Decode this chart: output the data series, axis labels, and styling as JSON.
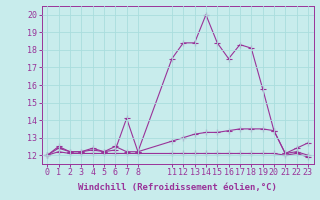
{
  "background_color": "#c8ecec",
  "grid_color": "#aadddd",
  "line_color": "#993399",
  "hours": [
    0,
    1,
    2,
    3,
    4,
    5,
    6,
    7,
    8,
    11,
    12,
    13,
    14,
    15,
    16,
    17,
    18,
    19,
    20,
    21,
    22,
    23
  ],
  "temp_line": [
    12.0,
    12.5,
    12.2,
    12.2,
    12.4,
    12.2,
    12.3,
    14.1,
    12.2,
    17.5,
    18.4,
    18.4,
    20.0,
    18.4,
    17.5,
    18.3,
    18.1,
    15.8,
    13.4,
    12.1,
    12.2,
    12.0
  ],
  "wind1_line": [
    12.0,
    12.4,
    12.2,
    12.2,
    12.3,
    12.2,
    12.5,
    12.2,
    12.2,
    12.8,
    13.0,
    13.2,
    13.3,
    13.3,
    13.4,
    13.5,
    13.5,
    13.5,
    13.4,
    12.1,
    12.4,
    12.7
  ],
  "wind2_line": [
    12.0,
    12.2,
    12.1,
    12.1,
    12.1,
    12.1,
    12.1,
    12.1,
    12.1,
    12.1,
    12.1,
    12.1,
    12.1,
    12.1,
    12.1,
    12.1,
    12.1,
    12.1,
    12.1,
    12.0,
    12.1,
    11.9
  ],
  "xlim": [
    -0.5,
    23.5
  ],
  "ylim": [
    11.5,
    20.5
  ],
  "yticks": [
    12,
    13,
    14,
    15,
    16,
    17,
    18,
    19,
    20
  ],
  "xticks": [
    0,
    1,
    2,
    3,
    4,
    5,
    6,
    7,
    8,
    11,
    12,
    13,
    14,
    15,
    16,
    17,
    18,
    19,
    20,
    21,
    22,
    23
  ],
  "xlabel": "Windchill (Refroidissement éolien,°C)",
  "marker": "+",
  "linewidth": 0.8,
  "fontsize_axis": 6,
  "fontsize_label": 6.5
}
